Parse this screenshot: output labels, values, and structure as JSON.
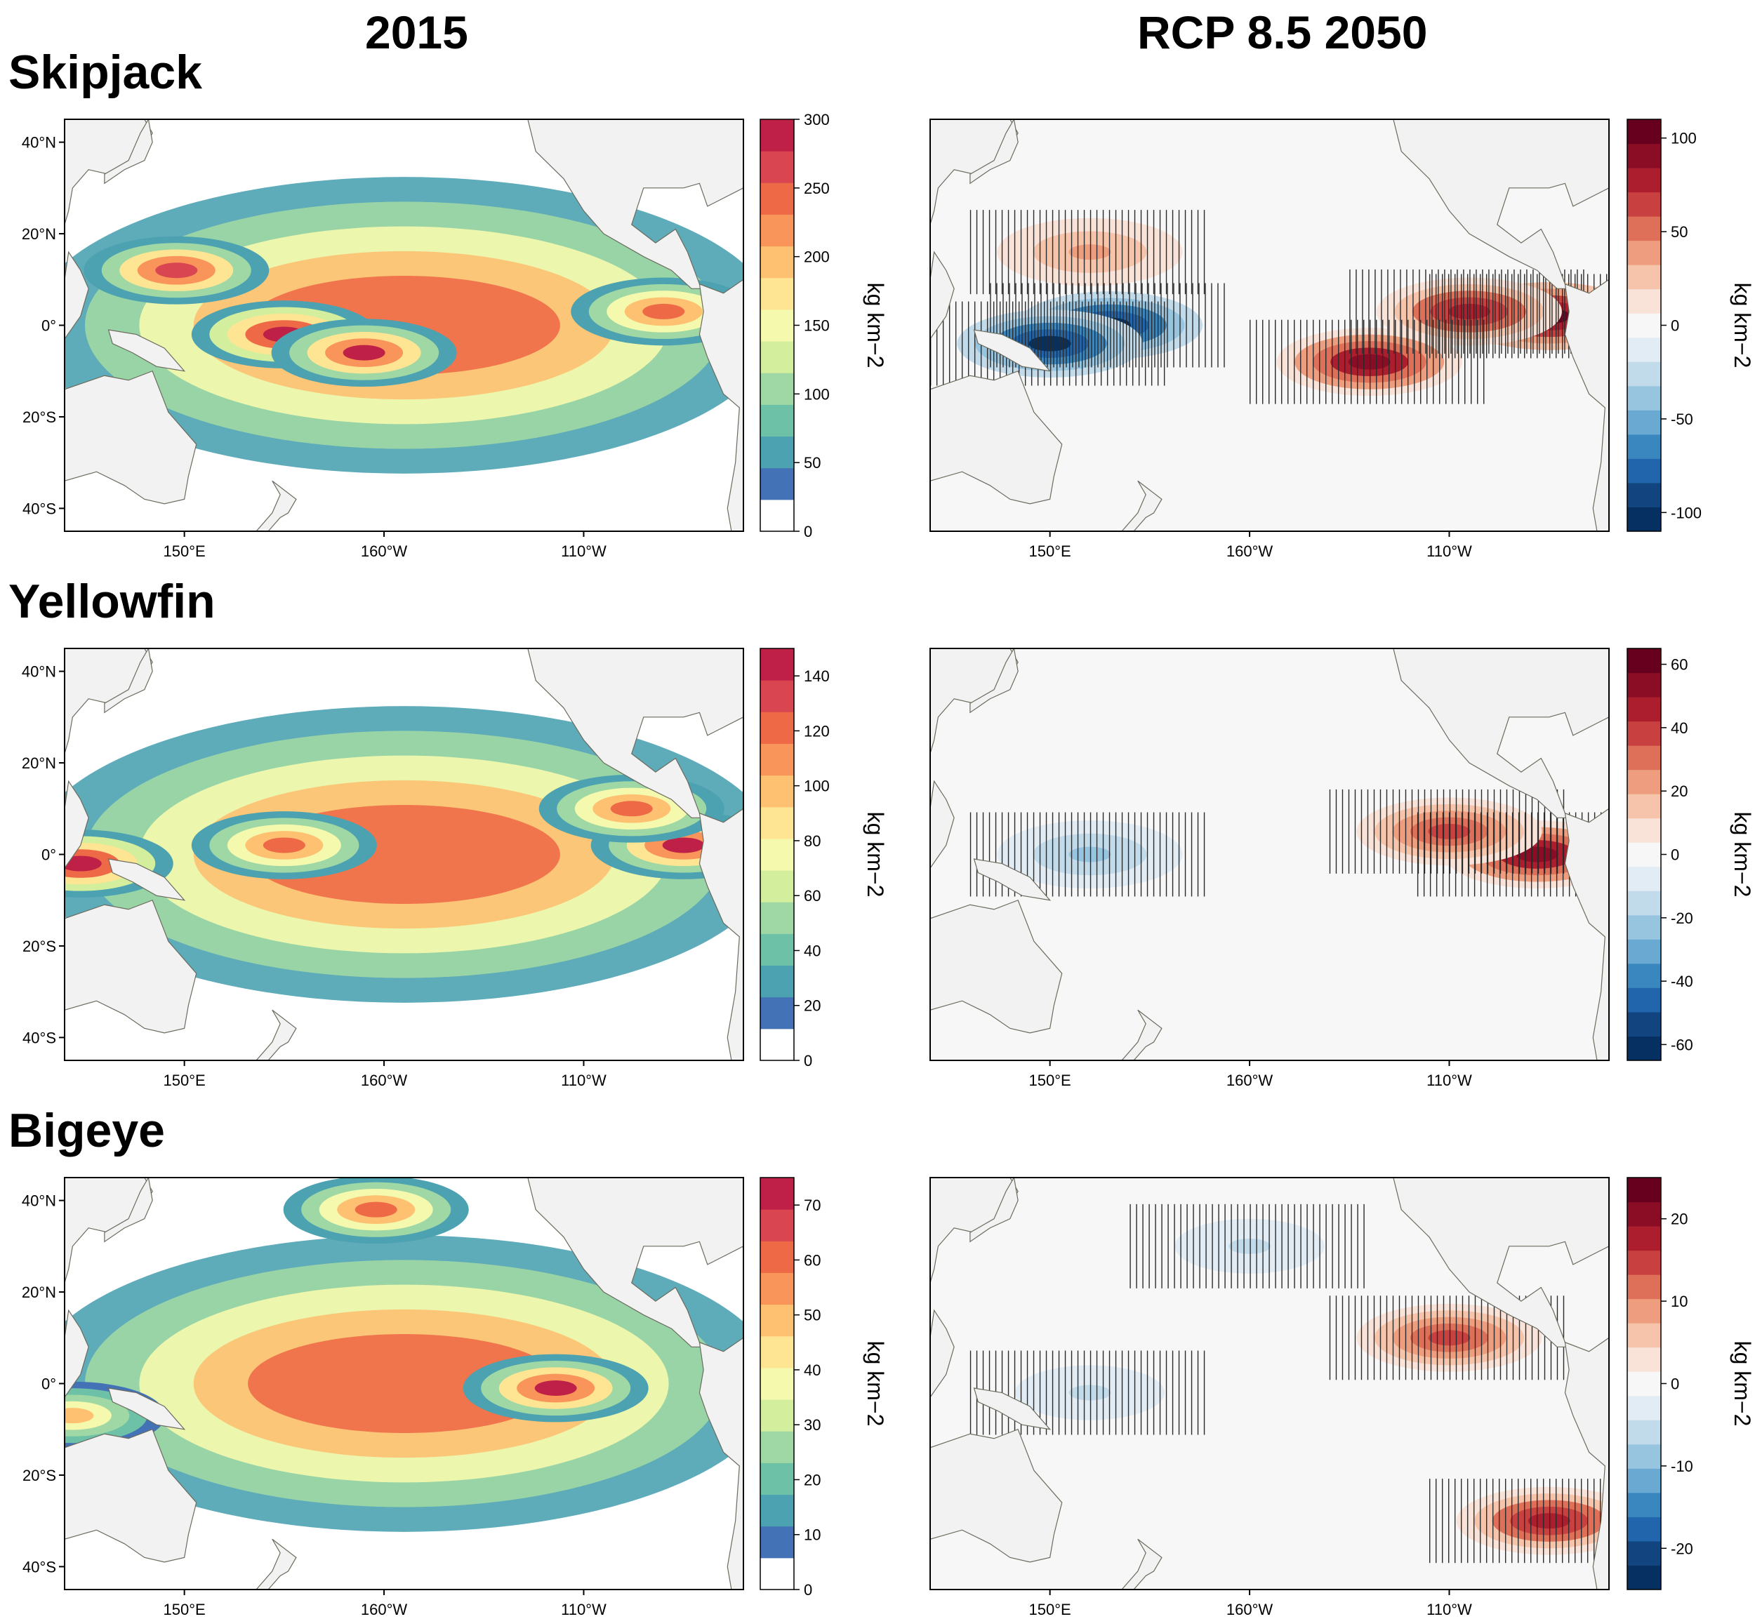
{
  "column_titles": [
    "2015",
    "RCP 8.5 2050"
  ],
  "species": [
    "Skipjack",
    "Yellowfin",
    "Bigeye"
  ],
  "colors": {
    "land": "#f2f2f2",
    "coast": "#6b6b5e",
    "stipple": "#2a2a2a",
    "spectral": [
      "#ffffff",
      "#4372b6",
      "#4da2b1",
      "#6dc1a6",
      "#9fd8a4",
      "#d3ee9c",
      "#f5f9ae",
      "#fee593",
      "#fdc171",
      "#f9955a",
      "#ee6a47",
      "#d94551",
      "#be2047"
    ],
    "diverging": [
      "#053061",
      "#12457f",
      "#2166ac",
      "#3a86be",
      "#6aa9d1",
      "#97c5e0",
      "#c2dbeb",
      "#e1ecf4",
      "#f7f7f7",
      "#f9e2d7",
      "#f6c4aa",
      "#ee9e7e",
      "#de6f59",
      "#c8403f",
      "#ac1d2e",
      "#8a0d25",
      "#67001f"
    ]
  },
  "chart_data": [
    {
      "type": "heatmap",
      "panel": "Skipjack 2015",
      "species": "Skipjack",
      "scenario": "2015",
      "xlabel": "",
      "ylabel": "",
      "x_ticks": [
        "150°E",
        "160°W",
        "110°W"
      ],
      "y_ticks": [
        "40°N",
        "20°N",
        "0°",
        "20°S",
        "40°S"
      ],
      "colorbar": {
        "label": "kg km−2",
        "range": [
          0,
          300
        ],
        "ticks": [
          0,
          50,
          100,
          150,
          200,
          250,
          300
        ],
        "scheme": "spectral"
      },
      "hotspots": [
        {
          "lon": 175,
          "lat": -2,
          "value": 290
        },
        {
          "lon": 195,
          "lat": -6,
          "value": 280
        },
        {
          "lon": 148,
          "lat": 12,
          "value": 270
        },
        {
          "lon": 270,
          "lat": 3,
          "value": 240
        }
      ]
    },
    {
      "type": "heatmap",
      "panel": "Skipjack RCP 8.5 2050",
      "species": "Skipjack",
      "scenario": "RCP 8.5 2050",
      "xlabel": "",
      "ylabel": "",
      "x_ticks": [
        "150°E",
        "160°W",
        "110°W"
      ],
      "y_ticks": [],
      "colorbar": {
        "label": "kg km−2",
        "range": [
          -110,
          110
        ],
        "ticks": [
          -100,
          -50,
          0,
          50,
          100
        ],
        "scheme": "diverging"
      },
      "hotspots": [
        {
          "lon": 165,
          "lat": 0,
          "value": -105
        },
        {
          "lon": 150,
          "lat": -4,
          "value": -100
        },
        {
          "lon": 230,
          "lat": -8,
          "value": 95
        },
        {
          "lon": 275,
          "lat": 2,
          "value": 105
        },
        {
          "lon": 255,
          "lat": 3,
          "value": 80
        },
        {
          "lon": 160,
          "lat": 16,
          "value": 40
        }
      ]
    },
    {
      "type": "heatmap",
      "panel": "Yellowfin 2015",
      "species": "Yellowfin",
      "scenario": "2015",
      "xlabel": "",
      "ylabel": "",
      "x_ticks": [
        "150°E",
        "160°W",
        "110°W"
      ],
      "y_ticks": [
        "40°N",
        "20°N",
        "0°",
        "20°S",
        "40°S"
      ],
      "colorbar": {
        "label": "kg km−2",
        "range": [
          0,
          150
        ],
        "ticks": [
          0,
          20,
          40,
          60,
          80,
          100,
          120,
          140
        ],
        "scheme": "spectral"
      },
      "hotspots": [
        {
          "lon": 124,
          "lat": -2,
          "value": 145
        },
        {
          "lon": 175,
          "lat": 2,
          "value": 125
        },
        {
          "lon": 275,
          "lat": 2,
          "value": 140
        },
        {
          "lon": 262,
          "lat": 10,
          "value": 120
        }
      ]
    },
    {
      "type": "heatmap",
      "panel": "Yellowfin RCP 8.5 2050",
      "species": "Yellowfin",
      "scenario": "RCP 8.5 2050",
      "xlabel": "",
      "ylabel": "",
      "x_ticks": [
        "150°E",
        "160°W",
        "110°W"
      ],
      "y_ticks": [],
      "colorbar": {
        "label": "kg km−2",
        "range": [
          -65,
          65
        ],
        "ticks": [
          -60,
          -40,
          -20,
          0,
          20,
          40,
          60
        ],
        "scheme": "diverging"
      },
      "hotspots": [
        {
          "lon": 160,
          "lat": 0,
          "value": -20
        },
        {
          "lon": 272,
          "lat": 0,
          "value": 55
        },
        {
          "lon": 250,
          "lat": 5,
          "value": 35
        }
      ]
    },
    {
      "type": "heatmap",
      "panel": "Bigeye 2015",
      "species": "Bigeye",
      "scenario": "2015",
      "xlabel": "",
      "ylabel": "",
      "x_ticks": [
        "150°E",
        "160°W",
        "110°W"
      ],
      "y_ticks": [
        "40°N",
        "20°N",
        "0°",
        "20°S",
        "40°S"
      ],
      "colorbar": {
        "label": "kg km−2",
        "range": [
          0,
          75
        ],
        "ticks": [
          0,
          10,
          20,
          30,
          40,
          50,
          60,
          70
        ],
        "scheme": "spectral"
      },
      "hotspots": [
        {
          "lon": 243,
          "lat": -1,
          "value": 72
        },
        {
          "lon": 198,
          "lat": 38,
          "value": 62
        },
        {
          "lon": 122,
          "lat": -7,
          "value": 48
        }
      ]
    },
    {
      "type": "heatmap",
      "panel": "Bigeye RCP 8.5 2050",
      "species": "Bigeye",
      "scenario": "RCP 8.5 2050",
      "xlabel": "",
      "ylabel": "",
      "x_ticks": [
        "150°E",
        "160°W",
        "110°W"
      ],
      "y_ticks": [],
      "colorbar": {
        "label": "kg km−2",
        "range": [
          -25,
          25
        ],
        "ticks": [
          -20,
          -10,
          0,
          10,
          20
        ],
        "scheme": "diverging"
      },
      "hotspots": [
        {
          "lon": 250,
          "lat": 10,
          "value": 15
        },
        {
          "lon": 275,
          "lat": -30,
          "value": 18
        },
        {
          "lon": 200,
          "lat": 30,
          "value": -5
        },
        {
          "lon": 160,
          "lat": -2,
          "value": -5
        }
      ]
    }
  ]
}
